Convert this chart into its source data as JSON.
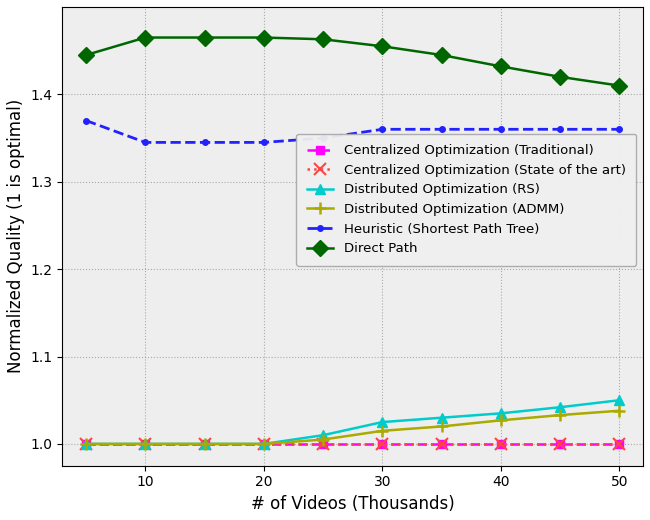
{
  "x": [
    5,
    10,
    15,
    20,
    25,
    30,
    35,
    40,
    45,
    50
  ],
  "centralized_traditional": [
    1.0,
    1.0,
    1.0,
    1.0,
    1.0,
    1.0,
    1.0,
    1.0,
    1.0,
    1.0
  ],
  "centralized_state_of_art": [
    1.0,
    1.0,
    1.0,
    1.0,
    1.0,
    1.0,
    1.0,
    1.0,
    1.0,
    1.0
  ],
  "distributed_rs": [
    1.0,
    1.0,
    1.0,
    1.0,
    1.01,
    1.025,
    1.03,
    1.035,
    1.042,
    1.05
  ],
  "distributed_admm": [
    1.0,
    1.0,
    1.0,
    1.0,
    1.005,
    1.015,
    1.02,
    1.027,
    1.033,
    1.038
  ],
  "heuristic_spt": [
    1.37,
    1.345,
    1.345,
    1.345,
    1.35,
    1.36,
    1.36,
    1.36,
    1.36,
    1.36
  ],
  "direct_path": [
    1.445,
    1.465,
    1.465,
    1.465,
    1.463,
    1.455,
    1.445,
    1.432,
    1.42,
    1.41
  ],
  "colors": {
    "centralized_traditional": "#ff00ff",
    "centralized_state_of_art": "#ff4444",
    "distributed_rs": "#00cccc",
    "distributed_admm": "#aaaa00",
    "heuristic_spt": "#2222ff",
    "direct_path": "#006600"
  },
  "labels": {
    "centralized_traditional": "Centralized Optimization (Traditional)",
    "centralized_state_of_art": "Centralized Optimization (State of the art)",
    "distributed_rs": "Distributed Optimization (RS)",
    "distributed_admm": "Distributed Optimization (ADMM)",
    "heuristic_spt": "Heuristic (Shortest Path Tree)",
    "direct_path": "Direct Path"
  },
  "xlabel": "# of Videos (Thousands)",
  "ylabel": "Normalized Quality (1 is optimal)",
  "ylim": [
    0.975,
    1.5
  ],
  "yticks": [
    1.0,
    1.1,
    1.2,
    1.3,
    1.4
  ],
  "xticks": [
    10,
    20,
    30,
    40,
    50
  ],
  "xlim": [
    3,
    52
  ],
  "figsize": [
    6.5,
    5.2
  ],
  "dpi": 100
}
